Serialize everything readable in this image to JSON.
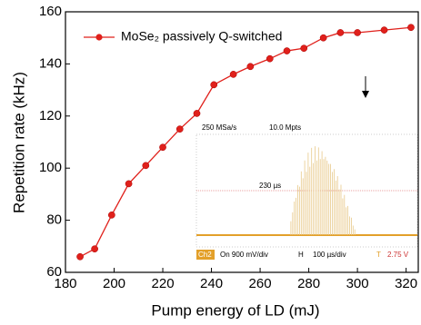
{
  "chart_data": {
    "type": "line",
    "x_label": "Pump energy of LD (mJ)",
    "y_label": "Repetition rate (kHz)",
    "x": [
      186,
      192,
      199,
      206,
      213,
      220,
      227,
      234,
      241,
      249,
      256,
      264,
      271,
      278,
      286,
      293,
      300,
      311,
      322
    ],
    "series": [
      {
        "name": "MoSe₂ passively Q-switched",
        "color": "#e0201b",
        "values": [
          66,
          69,
          82,
          94,
          101,
          108,
          115,
          121,
          132,
          136,
          139,
          142,
          145,
          146,
          150,
          152,
          152,
          153,
          154
        ]
      }
    ],
    "xlim": [
      180,
      325
    ],
    "ylim": [
      60,
      160
    ],
    "xticks": [
      180,
      200,
      220,
      240,
      260,
      280,
      300,
      320
    ],
    "yticks": [
      60,
      80,
      100,
      120,
      140,
      160
    ],
    "legend": "upper left",
    "inset": {
      "sample_rate": "250 MSa/s",
      "points": "10.0 Mpts",
      "width": "230 µs",
      "channel": "Ch2",
      "channel_scale": "On 900 mV/div",
      "h": "H",
      "time_scale": "100 µs/div",
      "t": "T",
      "trigger": "2.75 V"
    }
  }
}
